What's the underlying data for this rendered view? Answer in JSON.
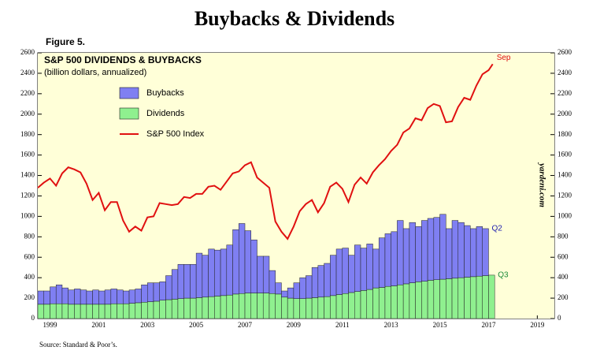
{
  "chart_data": {
    "type": "stacked-bar-line",
    "title": "Buybacks & Dividends",
    "figure_label": "Figure 5.",
    "subtitle": "S&P 500 DIVIDENDS & BUYBACKS",
    "unit_note": "(billion dollars, annualized)",
    "source": "Source: Standard & Poor’s.",
    "watermark": "yardeni.com",
    "xlim": [
      1999,
      2020.2
    ],
    "xticks": [
      {
        "value": 1999.5,
        "label": "1999"
      },
      {
        "value": 2001.5,
        "label": "2001"
      },
      {
        "value": 2003.5,
        "label": "2003"
      },
      {
        "value": 2005.5,
        "label": "2005"
      },
      {
        "value": 2007.5,
        "label": "2007"
      },
      {
        "value": 2009.5,
        "label": "2009"
      },
      {
        "value": 2011.5,
        "label": "2011"
      },
      {
        "value": 2013.5,
        "label": "2013"
      },
      {
        "value": 2015.5,
        "label": "2015"
      },
      {
        "value": 2017.5,
        "label": "2017"
      },
      {
        "value": 2019.5,
        "label": "2019"
      }
    ],
    "ylim": [
      0,
      2600
    ],
    "yticks": [
      0,
      200,
      400,
      600,
      800,
      1000,
      1200,
      1400,
      1600,
      1800,
      2000,
      2200,
      2400,
      2600
    ],
    "y2lim": [
      0,
      2600
    ],
    "y2ticks": [
      0,
      200,
      400,
      600,
      800,
      1000,
      1200,
      1400,
      1600,
      1800,
      2000,
      2200,
      2400,
      2600
    ],
    "background": "#ffffd8",
    "series": [
      {
        "name": "Dividends",
        "kind": "bar",
        "color": "#8ff08f",
        "end_label": "Q3",
        "label_color": "#1a8a3a",
        "x": [
          1999,
          1999.25,
          1999.5,
          1999.75,
          2000,
          2000.25,
          2000.5,
          2000.75,
          2001,
          2001.25,
          2001.5,
          2001.75,
          2002,
          2002.25,
          2002.5,
          2002.75,
          2003,
          2003.25,
          2003.5,
          2003.75,
          2004,
          2004.25,
          2004.5,
          2004.75,
          2005,
          2005.25,
          2005.5,
          2005.75,
          2006,
          2006.25,
          2006.5,
          2006.75,
          2007,
          2007.25,
          2007.5,
          2007.75,
          2008,
          2008.25,
          2008.5,
          2008.75,
          2009,
          2009.25,
          2009.5,
          2009.75,
          2010,
          2010.25,
          2010.5,
          2010.75,
          2011,
          2011.25,
          2011.5,
          2011.75,
          2012,
          2012.25,
          2012.5,
          2012.75,
          2013,
          2013.25,
          2013.5,
          2013.75,
          2014,
          2014.25,
          2014.5,
          2014.75,
          2015,
          2015.25,
          2015.5,
          2015.75,
          2016,
          2016.25,
          2016.5,
          2016.75,
          2017,
          2017.25,
          2017.5
        ],
        "values": [
          140,
          140,
          145,
          145,
          145,
          140,
          140,
          140,
          140,
          140,
          140,
          140,
          145,
          145,
          145,
          150,
          155,
          160,
          165,
          170,
          180,
          185,
          190,
          195,
          200,
          200,
          205,
          210,
          215,
          220,
          225,
          230,
          240,
          245,
          250,
          250,
          250,
          250,
          245,
          240,
          210,
          200,
          195,
          195,
          200,
          205,
          210,
          215,
          225,
          235,
          245,
          255,
          265,
          275,
          285,
          300,
          305,
          315,
          320,
          330,
          340,
          350,
          360,
          365,
          375,
          380,
          385,
          390,
          395,
          400,
          405,
          410,
          415,
          420,
          425
        ]
      },
      {
        "name": "Buybacks",
        "kind": "bar",
        "stack_on": 0,
        "color": "#7f7ff2",
        "end_label": "Q2",
        "label_color": "#2020b0",
        "x": [
          1999,
          1999.25,
          1999.5,
          1999.75,
          2000,
          2000.25,
          2000.5,
          2000.75,
          2001,
          2001.25,
          2001.5,
          2001.75,
          2002,
          2002.25,
          2002.5,
          2002.75,
          2003,
          2003.25,
          2003.5,
          2003.75,
          2004,
          2004.25,
          2004.5,
          2004.75,
          2005,
          2005.25,
          2005.5,
          2005.75,
          2006,
          2006.25,
          2006.5,
          2006.75,
          2007,
          2007.25,
          2007.5,
          2007.75,
          2008,
          2008.25,
          2008.5,
          2008.75,
          2009,
          2009.25,
          2009.5,
          2009.75,
          2010,
          2010.25,
          2010.5,
          2010.75,
          2011,
          2011.25,
          2011.5,
          2011.75,
          2012,
          2012.25,
          2012.5,
          2012.75,
          2013,
          2013.25,
          2013.5,
          2013.75,
          2014,
          2014.25,
          2014.5,
          2014.75,
          2015,
          2015.25,
          2015.5,
          2015.75,
          2016,
          2016.25,
          2016.5,
          2016.75,
          2017,
          2017.25
        ],
        "values": [
          130,
          130,
          165,
          185,
          155,
          140,
          150,
          140,
          130,
          140,
          130,
          140,
          145,
          135,
          125,
          130,
          135,
          170,
          185,
          180,
          180,
          235,
          290,
          335,
          330,
          330,
          435,
          410,
          465,
          450,
          455,
          490,
          630,
          685,
          610,
          520,
          360,
          360,
          225,
          110,
          60,
          100,
          155,
          205,
          220,
          295,
          310,
          325,
          395,
          445,
          445,
          365,
          455,
          415,
          445,
          380,
          485,
          515,
          530,
          630,
          540,
          590,
          540,
          595,
          605,
          610,
          635,
          490,
          565,
          540,
          505,
          470,
          485,
          460
        ]
      },
      {
        "name": "S&P 500 Index",
        "kind": "line",
        "color": "#e01010",
        "end_label": "Sep",
        "label_color": "#e01010",
        "x": [
          1999,
          1999.25,
          1999.5,
          1999.75,
          2000,
          2000.25,
          2000.5,
          2000.75,
          2001,
          2001.25,
          2001.5,
          2001.75,
          2002,
          2002.25,
          2002.5,
          2002.75,
          2003,
          2003.25,
          2003.5,
          2003.75,
          2004,
          2004.25,
          2004.5,
          2004.75,
          2005,
          2005.25,
          2005.5,
          2005.75,
          2006,
          2006.25,
          2006.5,
          2006.75,
          2007,
          2007.25,
          2007.5,
          2007.75,
          2008,
          2008.25,
          2008.5,
          2008.75,
          2009,
          2009.25,
          2009.5,
          2009.75,
          2010,
          2010.25,
          2010.5,
          2010.75,
          2011,
          2011.25,
          2011.5,
          2011.75,
          2012,
          2012.25,
          2012.5,
          2012.75,
          2013,
          2013.25,
          2013.5,
          2013.75,
          2014,
          2014.25,
          2014.5,
          2014.75,
          2015,
          2015.25,
          2015.5,
          2015.75,
          2016,
          2016.25,
          2016.5,
          2016.75,
          2017,
          2017.25,
          2017.5,
          2017.67
        ],
        "values": [
          1280,
          1330,
          1370,
          1300,
          1420,
          1480,
          1460,
          1430,
          1320,
          1160,
          1230,
          1060,
          1140,
          1140,
          960,
          850,
          900,
          860,
          990,
          1000,
          1130,
          1120,
          1110,
          1120,
          1190,
          1180,
          1220,
          1220,
          1290,
          1300,
          1260,
          1340,
          1420,
          1440,
          1500,
          1530,
          1380,
          1330,
          1280,
          950,
          850,
          780,
          900,
          1050,
          1120,
          1160,
          1040,
          1130,
          1290,
          1330,
          1270,
          1140,
          1310,
          1380,
          1320,
          1430,
          1500,
          1560,
          1640,
          1700,
          1820,
          1860,
          1960,
          1940,
          2060,
          2100,
          2080,
          1920,
          1930,
          2070,
          2160,
          2140,
          2280,
          2390,
          2430,
          2490
        ]
      }
    ]
  }
}
